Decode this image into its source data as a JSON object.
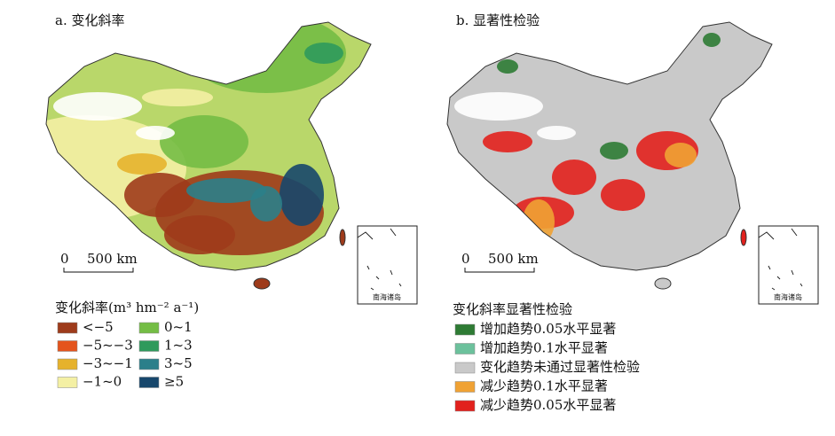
{
  "panels": [
    {
      "title": "a. 变化斜率",
      "scale_zero": "0",
      "scale_label": "500 km",
      "inset_label": "南海诸岛",
      "legend": {
        "title": "变化斜率(m³ hm⁻² a⁻¹)",
        "columns": 2,
        "items": [
          {
            "label": "<−5",
            "color": "#9e3b1b"
          },
          {
            "label": "−5~−3",
            "color": "#e4541d"
          },
          {
            "label": "−3~−1",
            "color": "#e6b22c"
          },
          {
            "label": "−1~0",
            "color": "#f4f0a4"
          },
          {
            "label": "0~1",
            "color": "#74bd45"
          },
          {
            "label": "1~3",
            "color": "#2f9a5c"
          },
          {
            "label": "3~5",
            "color": "#2b7f8a"
          },
          {
            "label": "≥5",
            "color": "#17476c"
          }
        ]
      }
    },
    {
      "title": "b. 显著性检验",
      "scale_zero": "0",
      "scale_label": "500 km",
      "inset_label": "南海诸岛",
      "legend": {
        "title": "变化斜率显著性检验",
        "columns": 1,
        "items": [
          {
            "label": "增加趋势0.05水平显著",
            "color": "#2e7b34"
          },
          {
            "label": "增加趋势0.1水平显著",
            "color": "#6cc19c"
          },
          {
            "label": "变化趋势未通过显著性检验",
            "color": "#c9c9c9"
          },
          {
            "label": "减少趋势0.1水平显著",
            "color": "#f0a234"
          },
          {
            "label": "减少趋势0.05水平显著",
            "color": "#e2211d"
          }
        ]
      }
    }
  ]
}
